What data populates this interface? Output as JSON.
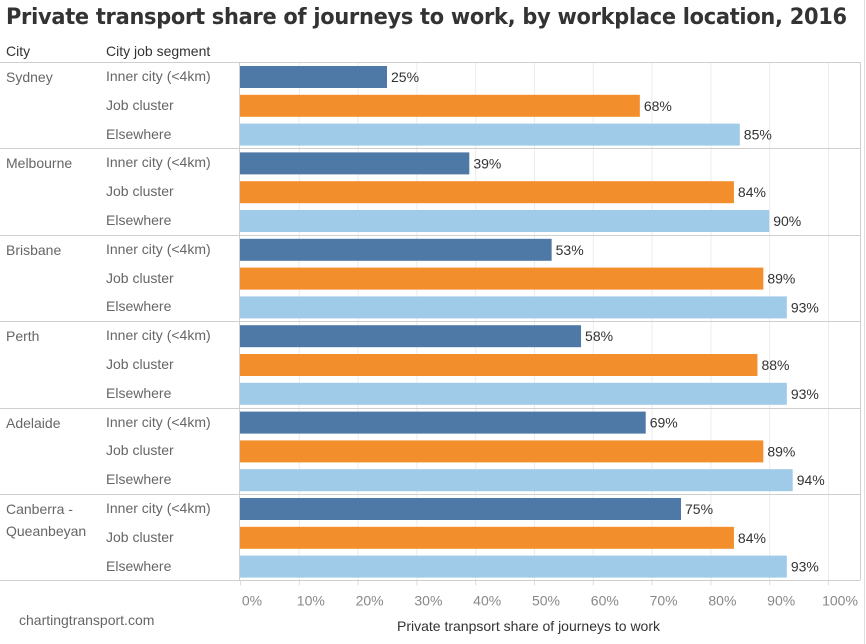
{
  "chart_data": {
    "type": "bar",
    "orientation": "horizontal",
    "title": "Private transport share of journeys to work, by workplace location, 2016",
    "row_headers": [
      "City",
      "City job segment"
    ],
    "xlabel": "Private tranpsort share of journeys to work",
    "xlim": [
      0,
      100
    ],
    "xticks": [
      "0%",
      "10%",
      "20%",
      "30%",
      "40%",
      "50%",
      "60%",
      "70%",
      "80%",
      "90%",
      "100%"
    ],
    "grid": true,
    "segments": [
      "Inner city (<4km)",
      "Job cluster",
      "Elsewhere"
    ],
    "segment_colors": [
      "#4e79a7",
      "#f28e2b",
      "#a0cbe8"
    ],
    "cities": [
      {
        "name": "Sydney",
        "values": [
          25,
          68,
          85
        ],
        "labels": [
          "25%",
          "68%",
          "85%"
        ]
      },
      {
        "name": "Melbourne",
        "values": [
          39,
          84,
          90
        ],
        "labels": [
          "39%",
          "84%",
          "90%"
        ]
      },
      {
        "name": "Brisbane",
        "values": [
          53,
          89,
          93
        ],
        "labels": [
          "53%",
          "89%",
          "93%"
        ]
      },
      {
        "name": "Perth",
        "values": [
          58,
          88,
          93
        ],
        "labels": [
          "58%",
          "88%",
          "93%"
        ]
      },
      {
        "name": "Adelaide",
        "values": [
          69,
          89,
          94
        ],
        "labels": [
          "69%",
          "89%",
          "94%"
        ]
      },
      {
        "name": "Canberra - Queanbeyan",
        "values": [
          75,
          84,
          93
        ],
        "labels": [
          "75%",
          "84%",
          "93%"
        ]
      }
    ]
  },
  "footer": {
    "credit": "chartingtransport.com"
  }
}
